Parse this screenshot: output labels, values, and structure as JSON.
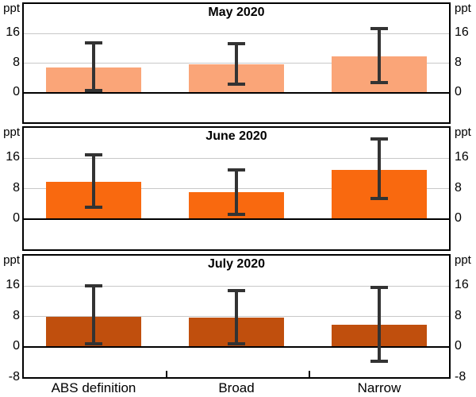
{
  "axis": {
    "unit_label": "ppt",
    "ytick_labels": [
      "16",
      "8",
      "0"
    ],
    "ytick_values": [
      16,
      8,
      0
    ],
    "bottom_tick_label": "-8"
  },
  "chart_data": {
    "type": "bar",
    "unit": "ppt",
    "categories": [
      "ABS definition",
      "Broad",
      "Narrow"
    ],
    "ylim": [
      -8,
      24
    ],
    "yticks": [
      0,
      8,
      16
    ],
    "grid": "horizontal gridlines at 8 and 16, solid zero line",
    "legend_position": "none",
    "gridline_color": "#C8C8C8",
    "border_color": "#000000",
    "error_bar_color": "#333333",
    "panels": [
      {
        "title": "May 2020",
        "color": "#FAA578",
        "values": [
          6.9,
          7.7,
          9.9
        ],
        "ci_low": [
          0.6,
          2.3,
          2.7
        ],
        "ci_high": [
          13.4,
          13.3,
          17.3
        ]
      },
      {
        "title": "June 2020",
        "color": "#F9690F",
        "values": [
          9.8,
          7.1,
          12.9
        ],
        "ci_low": [
          3.1,
          1.2,
          5.4
        ],
        "ci_high": [
          16.8,
          13.0,
          21.0
        ]
      },
      {
        "title": "July 2020",
        "color": "#C04F0D",
        "values": [
          8.0,
          7.7,
          5.8
        ],
        "ci_low": [
          0.7,
          0.7,
          -3.9
        ],
        "ci_high": [
          16.0,
          14.8,
          15.6
        ]
      }
    ]
  }
}
